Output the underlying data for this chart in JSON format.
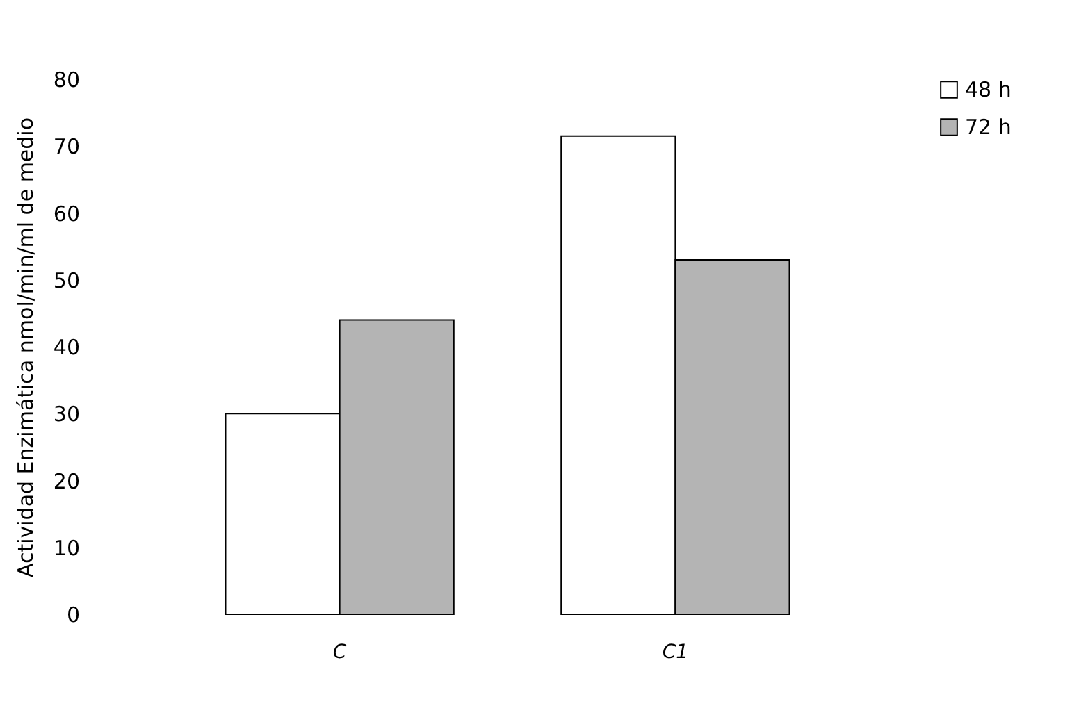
{
  "chart_data": {
    "type": "bar",
    "ylabel": "Actividad Enzimática nmol/min/ml de medio",
    "categories": [
      "C",
      "C1"
    ],
    "series": [
      {
        "name": "48 h",
        "color": "#ffffff",
        "values": [
          30,
          71.5
        ]
      },
      {
        "name": "72 h",
        "color": "#b4b4b4",
        "values": [
          44,
          53
        ]
      }
    ],
    "ylim": [
      0,
      80
    ],
    "yticks": [
      0,
      10,
      20,
      30,
      40,
      50,
      60,
      70,
      80
    ],
    "grid": false,
    "legend": "right"
  }
}
